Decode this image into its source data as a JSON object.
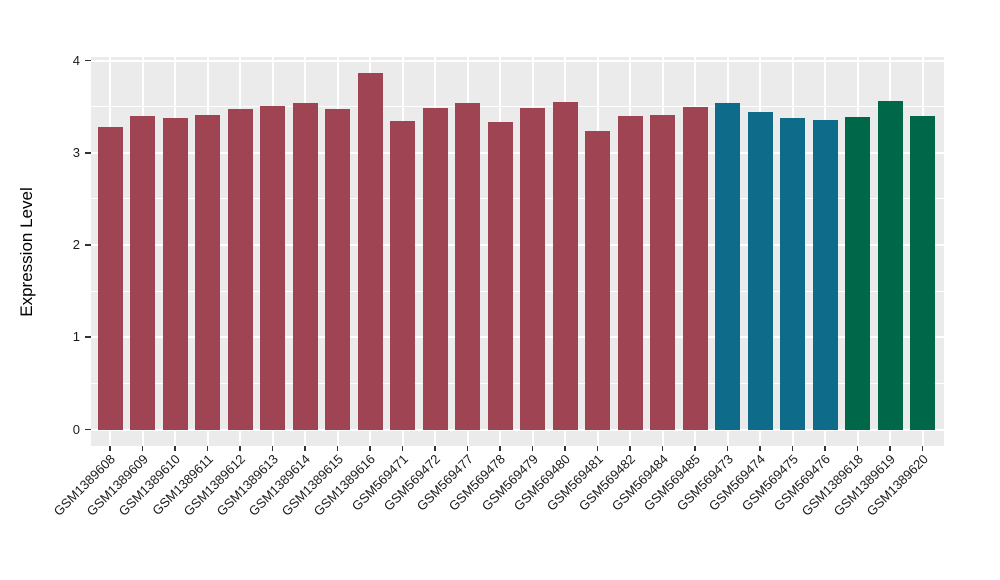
{
  "chart_data": {
    "type": "bar",
    "title": "",
    "xlabel": "",
    "ylabel": "Expression Level",
    "ylim": [
      0,
      4
    ],
    "yticks": [
      0,
      1,
      2,
      3,
      4
    ],
    "ytick_labels": [
      "0",
      "1",
      "2",
      "3",
      "4"
    ],
    "minor_yticks": [
      0.5,
      1.5,
      2.5,
      3.5
    ],
    "grid": "white major and minor gridlines on gray panel (ggplot style)",
    "legend_position": "none",
    "categories": [
      "GSM1389608",
      "GSM1389609",
      "GSM1389610",
      "GSM1389611",
      "GSM1389612",
      "GSM1389613",
      "GSM1389614",
      "GSM1389615",
      "GSM1389616",
      "GSM569471",
      "GSM569472",
      "GSM569477",
      "GSM569478",
      "GSM569479",
      "GSM569480",
      "GSM569481",
      "GSM569482",
      "GSM569484",
      "GSM569485",
      "GSM569473",
      "GSM569474",
      "GSM569475",
      "GSM569476",
      "GSM1389618",
      "GSM1389619",
      "GSM1389620"
    ],
    "values": [
      3.28,
      3.4,
      3.38,
      3.41,
      3.47,
      3.51,
      3.54,
      3.47,
      3.86,
      3.34,
      3.49,
      3.54,
      3.33,
      3.49,
      3.55,
      3.24,
      3.4,
      3.41,
      3.5,
      3.54,
      3.44,
      3.38,
      3.35,
      3.39,
      3.56,
      3.4
    ],
    "bar_colors": [
      "#9E4453",
      "#9E4453",
      "#9E4453",
      "#9E4453",
      "#9E4453",
      "#9E4453",
      "#9E4453",
      "#9E4453",
      "#9E4453",
      "#9E4453",
      "#9E4453",
      "#9E4453",
      "#9E4453",
      "#9E4453",
      "#9E4453",
      "#9E4453",
      "#9E4453",
      "#9E4453",
      "#9E4453",
      "#0E6B8A",
      "#0E6B8A",
      "#0E6B8A",
      "#0E6B8A",
      "#006849",
      "#006849",
      "#006849"
    ],
    "colors": {
      "group_maroon": "#9E4453",
      "group_teal": "#0E6B8A",
      "group_green": "#006849",
      "panel_background": "#EBEBEB",
      "gridline": "#FFFFFF",
      "axis_text": "#1A1A1A",
      "tick_mark": "#333333"
    }
  }
}
